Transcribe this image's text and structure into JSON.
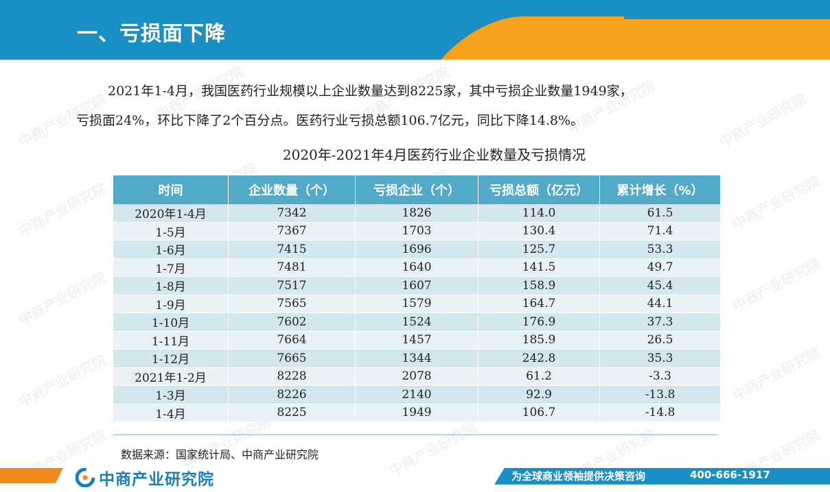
{
  "header": {
    "title": "一、亏损面下降"
  },
  "intro": {
    "line1": "2021年1-4月，我国医药行业规模以上企业数量达到8225家，其中亏损企业数量1949家，",
    "line2": "亏损面24%，环比下降了2个百分点。医药行业亏损总额106.7亿元，同比下降14.8%。"
  },
  "table": {
    "title": "2020年-2021年4月医药行业企业数量及亏损情况",
    "headers": [
      "时间",
      "企业数量（个）",
      "亏损企业（个）",
      "亏损总额（亿元）",
      "累计增长（%）"
    ],
    "rows": [
      [
        "2020年1-4月",
        "7342",
        "1826",
        "114.0",
        "61.5"
      ],
      [
        "1-5月",
        "7367",
        "1703",
        "130.4",
        "71.4"
      ],
      [
        "1-6月",
        "7415",
        "1696",
        "125.7",
        "53.3"
      ],
      [
        "1-7月",
        "7481",
        "1640",
        "141.5",
        "49.7"
      ],
      [
        "1-8月",
        "7517",
        "1607",
        "158.9",
        "45.4"
      ],
      [
        "1-9月",
        "7565",
        "1579",
        "164.7",
        "44.1"
      ],
      [
        "1-10月",
        "7602",
        "1524",
        "176.9",
        "37.3"
      ],
      [
        "1-11月",
        "7664",
        "1457",
        "185.9",
        "26.5"
      ],
      [
        "1-12月",
        "7665",
        "1344",
        "242.8",
        "35.3"
      ],
      [
        "2021年1-2月",
        "8228",
        "2078",
        "61.2",
        "-3.3"
      ],
      [
        "1-3月",
        "8226",
        "2140",
        "92.9",
        "-13.8"
      ],
      [
        "1-4月",
        "8225",
        "1949",
        "106.7",
        "-14.8"
      ]
    ]
  },
  "source": "数据来源：国家统计局、中商产业研究院",
  "footer": {
    "brand": "中商产业研究院",
    "slogan": "为全球商业领袖提供决策咨询",
    "phone": "400-666-1917"
  },
  "watermark_text": "中商产业研究院",
  "colors": {
    "header_blue": "#1a8fc4",
    "header_orange": "#f7a21c",
    "table_header": "#53a9c8"
  }
}
